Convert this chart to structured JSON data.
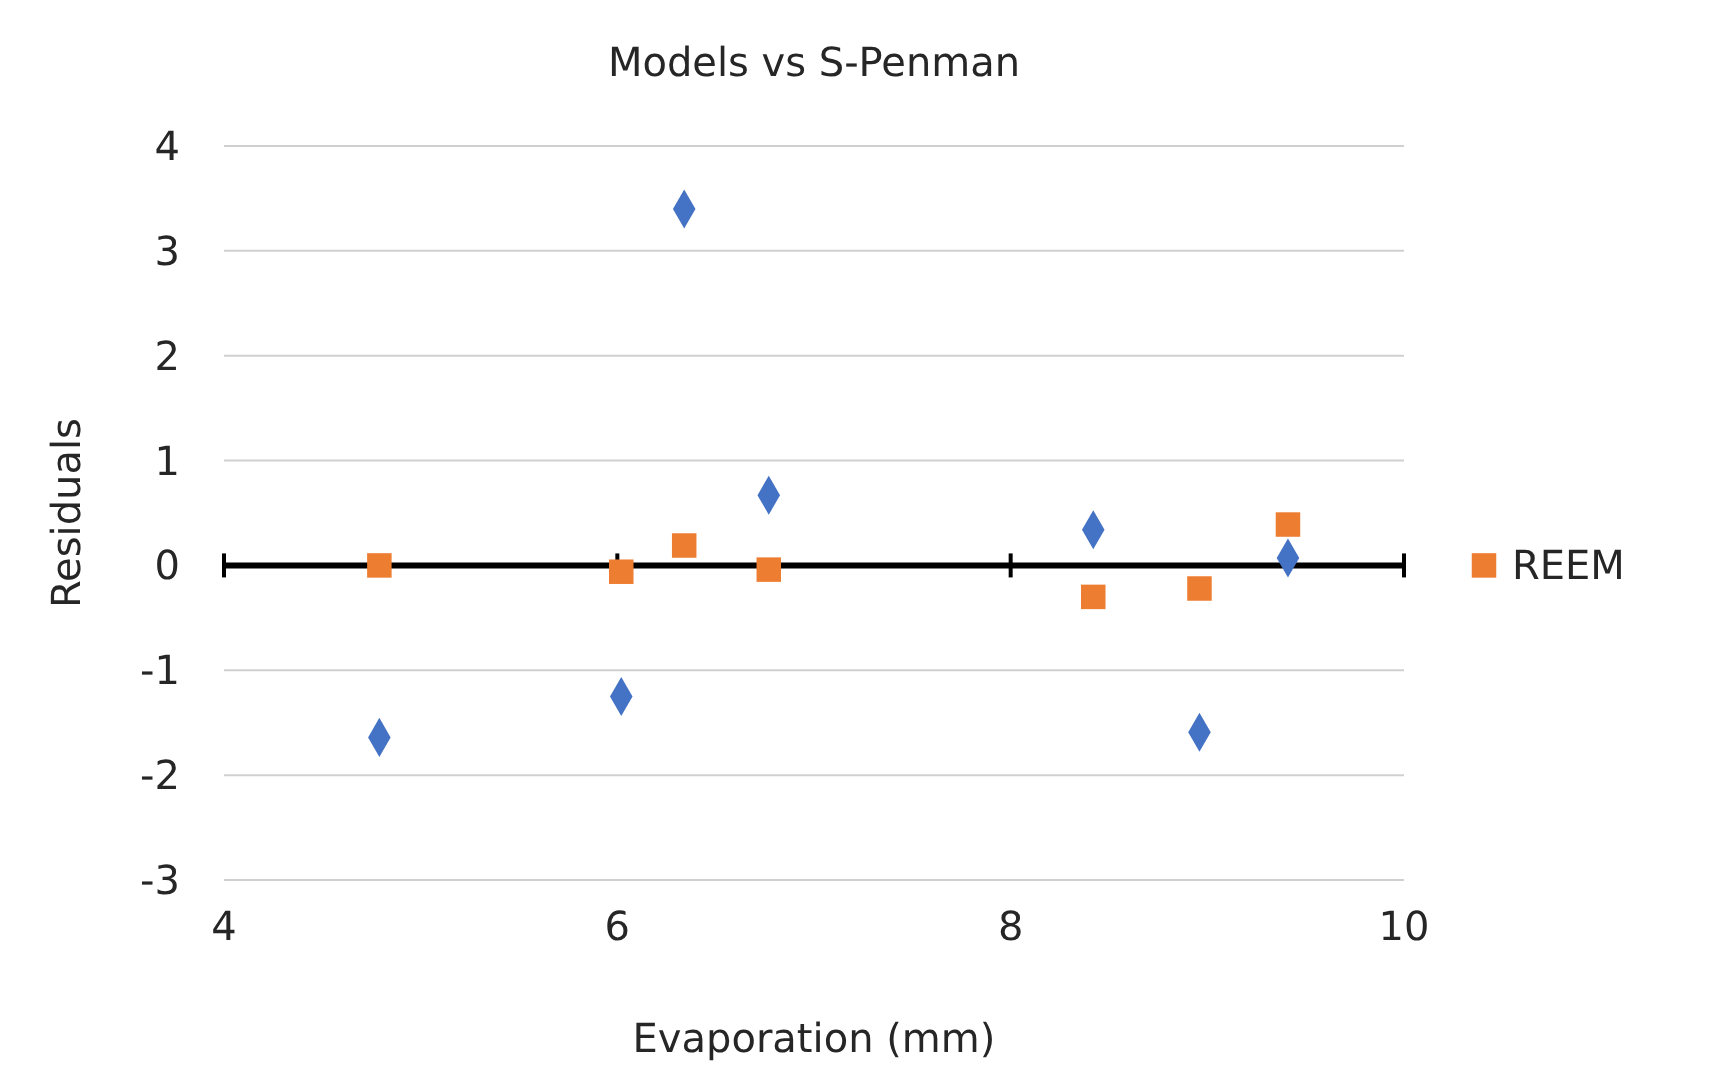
{
  "chart_data": {
    "type": "scatter",
    "title": "Models vs S-Penman",
    "xlabel": "Evaporation (mm)",
    "ylabel": "Residuals",
    "xlim": [
      4,
      10
    ],
    "xticks": [
      4,
      6,
      8,
      10
    ],
    "ylim": [
      -3,
      4
    ],
    "yticks": [
      -3,
      -2,
      -1,
      0,
      1,
      2,
      3,
      4
    ],
    "grid": "y",
    "legend": "right",
    "ref_lines": [
      {
        "axis": "y",
        "value": 0,
        "color": "#000000"
      }
    ],
    "series": [
      {
        "color": "#4472c4",
        "marker": "diamond",
        "x": [
          4.79,
          6.02,
          6.34,
          6.77,
          8.42,
          8.96,
          9.41
        ],
        "values": [
          -1.64,
          -1.25,
          3.4,
          0.67,
          0.34,
          -1.59,
          0.07
        ]
      },
      {
        "name": "REEM",
        "color": "#ed7d31",
        "marker": "square",
        "x": [
          4.79,
          6.02,
          6.34,
          6.77,
          8.42,
          8.96,
          9.41
        ],
        "values": [
          0.0,
          -0.06,
          0.19,
          -0.04,
          -0.3,
          -0.22,
          0.39
        ]
      }
    ]
  }
}
